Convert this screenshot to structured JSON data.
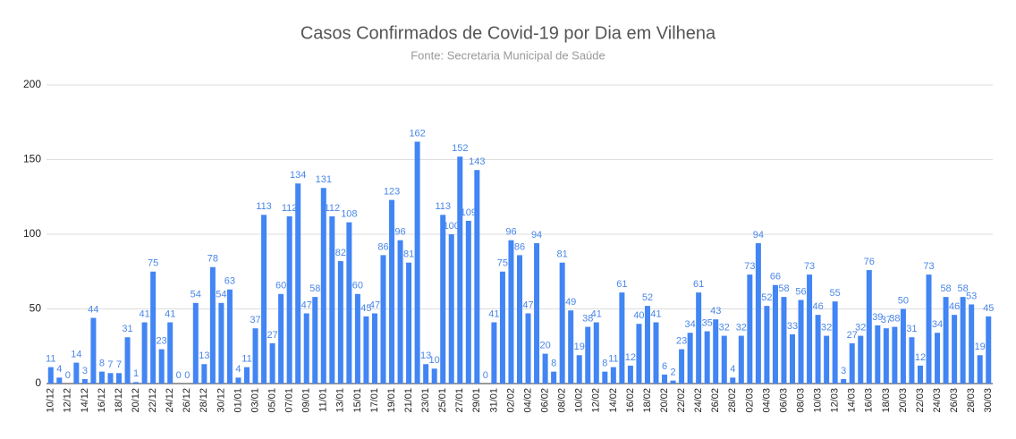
{
  "chart_data": {
    "type": "bar",
    "title": "Casos Confirmados de Covid-19 por Dia em Vilhena",
    "subtitle": "Fonte: Secretaria Municipal de Saúde",
    "categories": [
      "10/12",
      null,
      "12/12",
      null,
      "14/12",
      null,
      "16/12",
      null,
      "18/12",
      null,
      "20/12",
      null,
      "22/12",
      null,
      "24/12",
      null,
      "26/12",
      null,
      "28/12",
      null,
      "30/12",
      null,
      "01/01",
      null,
      "03/01",
      null,
      "05/01",
      null,
      "07/01",
      null,
      "09/01",
      null,
      "11/01",
      null,
      "13/01",
      null,
      "15/01",
      null,
      "17/01",
      null,
      "19/01",
      null,
      "21/01",
      null,
      "23/01",
      null,
      "25/01",
      null,
      "27/01",
      null,
      "29/01",
      null,
      "31/01",
      null,
      "02/02",
      null,
      "04/02",
      null,
      "06/02",
      null,
      "08/02",
      null,
      "10/02",
      null,
      "12/02",
      null,
      "14/02",
      null,
      "16/02",
      null,
      "18/02",
      null,
      "20/02",
      null,
      "22/02",
      null,
      "24/02",
      null,
      "26/02",
      null,
      "28/02",
      null,
      "02/03",
      null,
      "04/03",
      null,
      "06/03",
      null,
      "08/03",
      null,
      "10/03",
      null,
      "12/03",
      null,
      "14/03",
      null,
      "16/03",
      null,
      "18/03",
      null,
      "20/03",
      null,
      "22/03",
      null,
      "24/03",
      null,
      "26/03",
      null,
      "28/03",
      null,
      "30/03"
    ],
    "values": [
      11,
      4,
      0,
      14,
      3,
      44,
      8,
      7,
      7,
      31,
      1,
      41,
      75,
      23,
      41,
      0,
      0,
      54,
      13,
      78,
      54,
      63,
      4,
      11,
      37,
      113,
      27,
      60,
      112,
      134,
      47,
      58,
      131,
      112,
      82,
      108,
      60,
      45,
      47,
      86,
      123,
      96,
      81,
      162,
      13,
      10,
      113,
      100,
      152,
      109,
      143,
      0,
      41,
      75,
      96,
      86,
      47,
      94,
      20,
      8,
      81,
      49,
      19,
      38,
      41,
      8,
      11,
      61,
      12,
      40,
      52,
      41,
      6,
      2,
      23,
      34,
      61,
      35,
      43,
      32,
      4,
      32,
      73,
      94,
      52,
      66,
      58,
      33,
      56,
      73,
      46,
      32,
      55,
      3,
      27,
      32,
      76,
      39,
      37,
      38,
      50,
      31,
      12,
      73,
      34,
      58,
      46,
      58,
      53,
      19,
      45
    ],
    "color": "#4285f4",
    "ylim": [
      0,
      200
    ],
    "yticks": [
      0,
      50,
      100,
      150,
      200
    ],
    "grid": true
  }
}
